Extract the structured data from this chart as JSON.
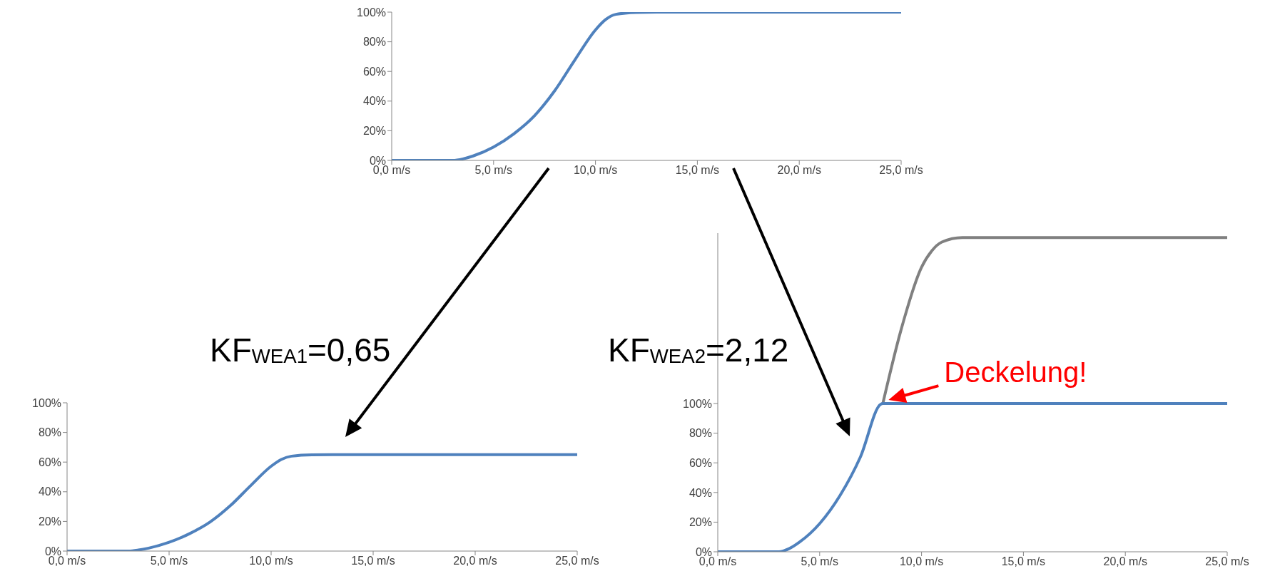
{
  "chart_data": [
    {
      "type": "line",
      "x": [
        0,
        1,
        2,
        3,
        3.5,
        4,
        5,
        6,
        7,
        8,
        9,
        10,
        10.5,
        11,
        12,
        13,
        25
      ],
      "series": [
        {
          "color": "#4f81bd",
          "values": [
            0,
            0,
            0,
            0,
            1,
            3,
            9,
            18,
            30,
            47,
            68,
            88,
            95,
            98.5,
            99.8,
            100,
            100
          ]
        }
      ],
      "xlim": [
        0,
        25
      ],
      "xticks": [
        {
          "value": 0,
          "label": "0,0 m/s"
        },
        {
          "value": 5,
          "label": "5,0 m/s"
        },
        {
          "value": 10,
          "label": "10,0 m/s"
        },
        {
          "value": 15,
          "label": "15,0 m/s"
        },
        {
          "value": 20,
          "label": "20,0 m/s"
        },
        {
          "value": 25,
          "label": "25,0 m/s"
        }
      ],
      "ylim": [
        0,
        100
      ],
      "yticks": [
        {
          "value": 0,
          "label": "0%"
        },
        {
          "value": 20,
          "label": "20%"
        },
        {
          "value": 40,
          "label": "40%"
        },
        {
          "value": 60,
          "label": "60%"
        },
        {
          "value": 80,
          "label": "80%"
        },
        {
          "value": 100,
          "label": "100%"
        }
      ]
    },
    {
      "type": "line",
      "x": [
        0,
        1,
        2,
        3,
        3.5,
        4,
        5,
        6,
        7,
        8,
        9,
        10,
        10.5,
        11,
        12,
        13,
        25
      ],
      "series": [
        {
          "color": "#4f81bd",
          "values": [
            0,
            0,
            0,
            0,
            0.7,
            2,
            5.9,
            11.7,
            19.5,
            30.6,
            44.2,
            57.2,
            61.8,
            64,
            64.9,
            65,
            65
          ]
        }
      ],
      "xlim": [
        0,
        25
      ],
      "xticks": [
        {
          "value": 0,
          "label": "0,0 m/s"
        },
        {
          "value": 5,
          "label": "5,0 m/s"
        },
        {
          "value": 10,
          "label": "10,0 m/s"
        },
        {
          "value": 15,
          "label": "15,0 m/s"
        },
        {
          "value": 20,
          "label": "20,0 m/s"
        },
        {
          "value": 25,
          "label": "25,0 m/s"
        }
      ],
      "ylim": [
        0,
        100
      ],
      "yticks": [
        {
          "value": 0,
          "label": "0%"
        },
        {
          "value": 20,
          "label": "20%"
        },
        {
          "value": 40,
          "label": "40%"
        },
        {
          "value": 60,
          "label": "60%"
        },
        {
          "value": 80,
          "label": "80%"
        },
        {
          "value": 100,
          "label": "100%"
        }
      ],
      "annotations": [
        "KF$_{WEA1}$=0,65"
      ]
    },
    {
      "type": "line",
      "series": [
        {
          "color": "#808080",
          "x": [
            8.1,
            9,
            10,
            10.5,
            11,
            12,
            25
          ],
          "values": [
            100,
            150,
            192,
            203,
            209,
            212,
            212
          ]
        },
        {
          "color": "#4f81bd",
          "x": [
            0,
            1,
            2,
            3,
            3.5,
            4,
            5,
            6,
            7,
            8,
            8.1,
            25
          ],
          "values": [
            0,
            0,
            0,
            0,
            2.1,
            6.4,
            19,
            38,
            64,
            99.6,
            100,
            100
          ]
        }
      ],
      "xlim": [
        0,
        25
      ],
      "xticks": [
        {
          "value": 0,
          "label": "0,0 m/s"
        },
        {
          "value": 5,
          "label": "5,0 m/s"
        },
        {
          "value": 10,
          "label": "10,0 m/s"
        },
        {
          "value": 15,
          "label": "15,0 m/s"
        },
        {
          "value": 20,
          "label": "20,0 m/s"
        },
        {
          "value": 25,
          "label": "25,0 m/s"
        }
      ],
      "ylim": [
        0,
        215
      ],
      "yticks": [
        {
          "value": 0,
          "label": "0%"
        },
        {
          "value": 20,
          "label": "20%"
        },
        {
          "value": 40,
          "label": "40%"
        },
        {
          "value": 60,
          "label": "60%"
        },
        {
          "value": 80,
          "label": "80%"
        },
        {
          "value": 100,
          "label": "100%"
        }
      ],
      "annotations": [
        "KF$_{WEA2}$=2,12",
        {
          "text": "Deckelung!",
          "x": 8.1,
          "y": 100
        }
      ]
    }
  ]
}
